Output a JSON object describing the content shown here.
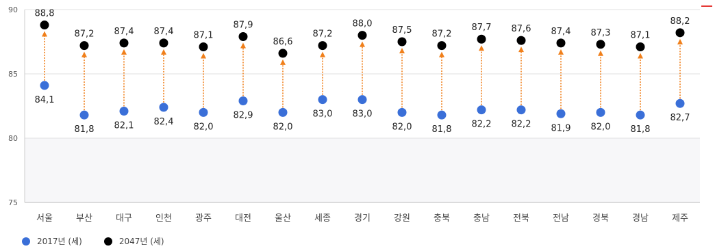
{
  "chart_data": {
    "type": "dot-range",
    "categories": [
      "서울",
      "부산",
      "대구",
      "인천",
      "광주",
      "대전",
      "울산",
      "세종",
      "경기",
      "강원",
      "충북",
      "충남",
      "전북",
      "전남",
      "경북",
      "경남",
      "제주"
    ],
    "series": [
      {
        "name": "2017년 (세)",
        "color": "#3a6fd8",
        "values": [
          84.1,
          81.8,
          82.1,
          82.4,
          82.0,
          82.9,
          82.0,
          83.0,
          83.0,
          82.0,
          81.8,
          82.2,
          82.2,
          81.9,
          82.0,
          81.8,
          82.7
        ],
        "labels": [
          "84,1",
          "81,8",
          "82,1",
          "82,4",
          "82,0",
          "82,9",
          "82,0",
          "83,0",
          "83,0",
          "82,0",
          "81,8",
          "82,2",
          "82,2",
          "81,9",
          "82,0",
          "81,8",
          "82,7"
        ]
      },
      {
        "name": "2047년 (세)",
        "color": "#000000",
        "values": [
          88.8,
          87.2,
          87.4,
          87.4,
          87.1,
          87.9,
          86.6,
          87.2,
          88.0,
          87.5,
          87.2,
          87.7,
          87.6,
          87.4,
          87.3,
          87.1,
          88.2
        ],
        "labels": [
          "88,8",
          "87,2",
          "87,4",
          "87,4",
          "87,1",
          "87,9",
          "86,6",
          "87,2",
          "88,0",
          "87,5",
          "87,2",
          "87,7",
          "87,6",
          "87,4",
          "87,3",
          "87,1",
          "88,2"
        ]
      }
    ],
    "yticks": [
      75,
      80,
      85,
      90
    ],
    "ylim": [
      75,
      90
    ],
    "arrow_color": "#f07f1a",
    "grid": true,
    "legend_position": "bottom-left"
  }
}
